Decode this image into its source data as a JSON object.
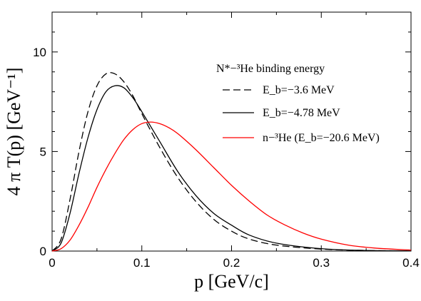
{
  "chart_data": {
    "type": "line",
    "xlabel": "p [GeV/c]",
    "ylabel": "4 π T(p) [GeV⁻¹]",
    "xlim": [
      0,
      0.4
    ],
    "ylim": [
      0,
      12
    ],
    "x_ticks": [
      0,
      0.1,
      0.2,
      0.3,
      0.4
    ],
    "x_tick_labels": [
      "0",
      "0.1",
      "0.2",
      "0.3",
      "0.4"
    ],
    "y_ticks": [
      0,
      5,
      10
    ],
    "y_tick_labels": [
      "0",
      "5",
      "10"
    ],
    "grid": false,
    "legend_title": "N*−³He binding energy",
    "legend_placement": "upper-right",
    "series": [
      {
        "name": "E_b=−3.6 MeV",
        "legend_label": "E_b=−3.6 MeV",
        "color": "#000000",
        "dash": "dashed",
        "x": [
          0,
          0.01,
          0.02,
          0.03,
          0.04,
          0.05,
          0.06,
          0.07,
          0.08,
          0.09,
          0.1,
          0.12,
          0.14,
          0.16,
          0.18,
          0.2,
          0.22,
          0.25,
          0.3,
          0.35,
          0.4
        ],
        "y": [
          0,
          0.6,
          2.6,
          5.0,
          7.0,
          8.3,
          8.9,
          8.9,
          8.5,
          7.8,
          6.9,
          5.2,
          3.7,
          2.5,
          1.6,
          1.0,
          0.6,
          0.3,
          0.1,
          0.03,
          0.01
        ]
      },
      {
        "name": "E_b=−4.78 MeV",
        "legend_label": "E_b=−4.78 MeV",
        "color": "#000000",
        "dash": "solid",
        "x": [
          0,
          0.01,
          0.02,
          0.03,
          0.04,
          0.05,
          0.06,
          0.07,
          0.08,
          0.09,
          0.1,
          0.12,
          0.14,
          0.16,
          0.18,
          0.2,
          0.22,
          0.25,
          0.3,
          0.35,
          0.4
        ],
        "y": [
          0,
          0.4,
          1.9,
          3.9,
          5.7,
          7.1,
          8.0,
          8.3,
          8.2,
          7.7,
          7.0,
          5.5,
          4.0,
          2.8,
          1.9,
          1.3,
          0.8,
          0.4,
          0.12,
          0.03,
          0.01
        ]
      },
      {
        "name": "n−³He (E_b=−20.6 MeV)",
        "legend_label": "n−³He (E_b=−20.6 MeV)",
        "color": "#ff0000",
        "dash": "solid",
        "x": [
          0,
          0.01,
          0.02,
          0.03,
          0.04,
          0.05,
          0.06,
          0.07,
          0.08,
          0.09,
          0.1,
          0.11,
          0.12,
          0.13,
          0.14,
          0.16,
          0.18,
          0.2,
          0.22,
          0.24,
          0.26,
          0.28,
          0.3,
          0.33,
          0.36,
          0.4
        ],
        "y": [
          0,
          0.12,
          0.55,
          1.3,
          2.2,
          3.2,
          4.1,
          4.9,
          5.6,
          6.1,
          6.4,
          6.48,
          6.4,
          6.2,
          5.9,
          5.1,
          4.2,
          3.3,
          2.5,
          1.8,
          1.3,
          0.9,
          0.6,
          0.3,
          0.15,
          0.05
        ]
      }
    ]
  }
}
